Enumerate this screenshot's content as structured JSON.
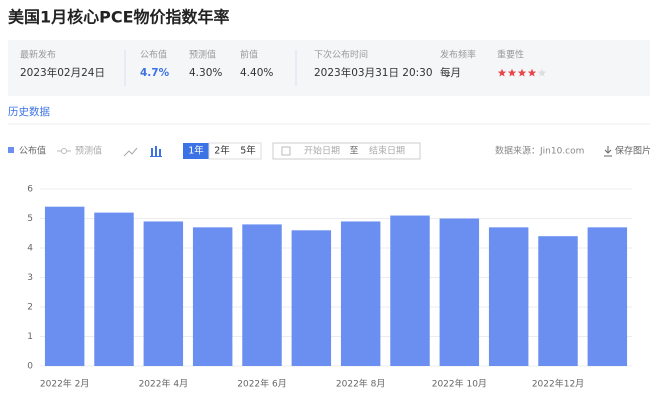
{
  "header": {
    "title": "美国1月核心PCE物价指数年率"
  },
  "info": {
    "latest_label": "最新发布",
    "latest": "2023年02月24日",
    "actual_label": "公布值",
    "actual": "4.7%",
    "forecast_label": "预测值",
    "forecast": "4.30%",
    "previous_label": "前值",
    "previous": "4.40%",
    "next_label": "下次公布时间",
    "next": "2023年03月31日 20:30",
    "frequency_label": "发布频率",
    "frequency": "每月",
    "importance_label": "重要性",
    "importance": 4
  },
  "tabs": {
    "history": "历史数据"
  },
  "toolbar": {
    "forecast_legend": "预测值",
    "ranges": [
      "1年",
      "2年",
      "5年"
    ],
    "start_date": "开始日期",
    "to": "至",
    "end_date": "结束日期",
    "source": "数据来源：Jin10.com",
    "save": "保存图片"
  },
  "chart_data": {
    "type": "bar",
    "categories": [
      "2022年 2月",
      null,
      "2022年 4月",
      null,
      "2022年 6月",
      null,
      "2022年 8月",
      null,
      "2022年 10月",
      null,
      "2022年12月",
      null
    ],
    "series": [
      {
        "name": "公布值",
        "color": "#6b8ff0",
        "values": [
          5.4,
          5.2,
          4.9,
          4.7,
          4.8,
          4.6,
          4.9,
          5.1,
          5.0,
          4.7,
          4.4,
          4.7
        ]
      }
    ],
    "ylim": [
      0,
      6
    ],
    "yticks": [
      0,
      1,
      2,
      3,
      4,
      5,
      6
    ],
    "grid": true
  }
}
